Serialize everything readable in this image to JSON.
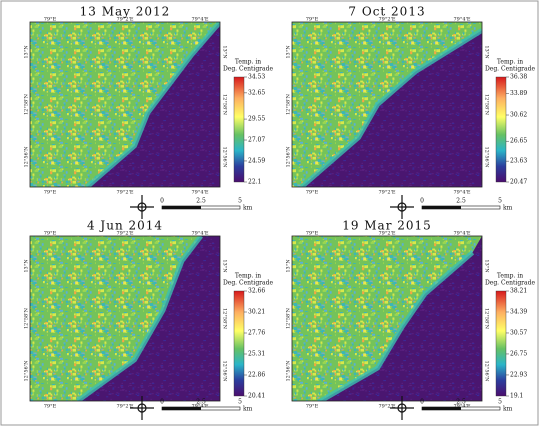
{
  "panels": [
    {
      "title": "13 May 2012",
      "legend": {
        "title": [
          "Temp. in",
          "Deg. Centigrade"
        ],
        "ticks": [
          34.53,
          32.65,
          29.55,
          27.07,
          24.59,
          22.1
        ]
      },
      "x_labels": [
        "79°E",
        "79°2'E",
        "79°4'E"
      ],
      "y_labels": [
        "13°N",
        "12°58'N",
        "12°56'N"
      ]
    },
    {
      "title": "7 Oct 2013",
      "legend": {
        "title": [
          "Temp. in",
          "Deg. Centigrade"
        ],
        "ticks": [
          36.38,
          33.89,
          30.62,
          26.65,
          23.63,
          20.47
        ]
      },
      "x_labels": [
        "79°E",
        "79°2'E",
        "79°4'E"
      ],
      "y_labels": [
        "13°N",
        "12°58'N",
        "12°56'N"
      ]
    },
    {
      "title": "4 Jun 2014",
      "legend": {
        "title": [
          "Temp. in",
          "Deg. Centigrade"
        ],
        "ticks": [
          32.66,
          30.21,
          27.76,
          25.31,
          22.86,
          20.41
        ]
      },
      "x_labels": [
        "79°E",
        "79°2'E",
        "79°4'E"
      ],
      "y_labels": [
        "13°N",
        "12°58'N",
        "12°56'N"
      ]
    },
    {
      "title": "19 Mar 2015",
      "legend": {
        "title": [
          "Temp. in",
          "Deg. Centigrade"
        ],
        "ticks": [
          38.21,
          34.39,
          30.57,
          26.75,
          22.93,
          19.1
        ]
      },
      "x_labels": [
        "79°E",
        "79°2'E",
        "79°4'E"
      ],
      "y_labels": [
        "13°N",
        "12°58'N",
        "12°56'N"
      ]
    }
  ],
  "scale": {
    "labels": [
      "0",
      "2.5",
      "5"
    ],
    "unit": "km"
  }
}
